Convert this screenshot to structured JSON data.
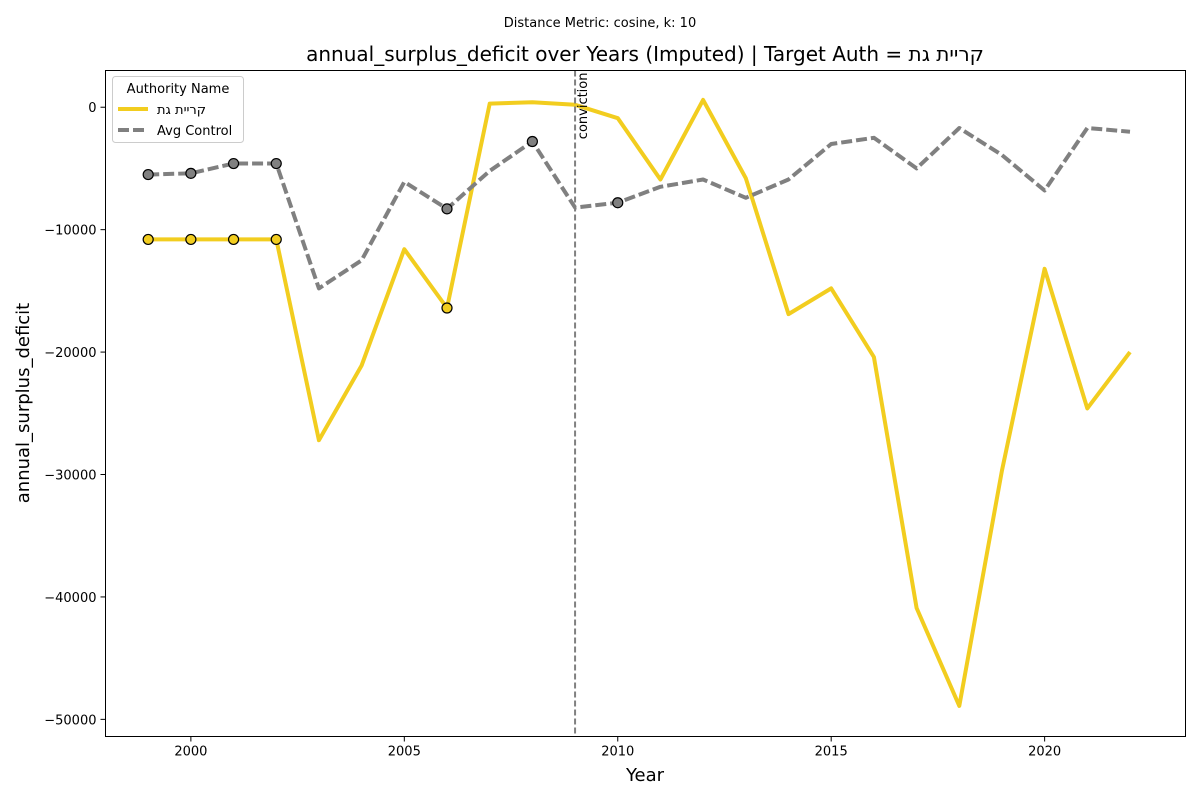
{
  "chart_data": {
    "type": "line",
    "suptitle": "Distance Metric: cosine, k: 10",
    "title": "annual_surplus_deficit over Years (Imputed) | Target Auth = קריית גת",
    "xlabel": "Year",
    "ylabel": "annual_surplus_deficit",
    "xlim": [
      1998,
      2023.3
    ],
    "ylim": [
      -51400,
      3000
    ],
    "xticks": [
      2000,
      2005,
      2010,
      2015,
      2020
    ],
    "xtick_labels": [
      "2000",
      "2005",
      "2010",
      "2015",
      "2020"
    ],
    "yticks": [
      0,
      -10000,
      -20000,
      -30000,
      -40000,
      -50000
    ],
    "ytick_labels": [
      "0",
      "−10000",
      "−20000",
      "−30000",
      "−40000",
      "−50000"
    ],
    "grid": false,
    "legend": {
      "title": "Authority Name",
      "placement": "top-left"
    },
    "vline": {
      "x": 2009,
      "label": "conviction",
      "color": "#808080"
    },
    "x": [
      1999,
      2000,
      2001,
      2002,
      2003,
      2004,
      2005,
      2006,
      2007,
      2008,
      2009,
      2010,
      2011,
      2012,
      2013,
      2014,
      2015,
      2016,
      2017,
      2018,
      2019,
      2020,
      2021,
      2022
    ],
    "series": [
      {
        "name": "קריית גת",
        "color": "#f2cd1f",
        "style": "solid",
        "values": [
          -10800,
          -10800,
          -10800,
          -10800,
          -27200,
          -21100,
          -11600,
          -16400,
          300,
          400,
          200,
          -900,
          -5900,
          600,
          -5800,
          -16900,
          -14800,
          -20400,
          -40900,
          -48900,
          -29700,
          -13200,
          -24600,
          -20000
        ],
        "imputed_x": [
          1999,
          2000,
          2001,
          2002,
          2006
        ]
      },
      {
        "name": "Avg Control",
        "color": "#808080",
        "style": "dashed",
        "values": [
          -5500,
          -5400,
          -4600,
          -4600,
          -14800,
          -12500,
          -6100,
          -8300,
          -5200,
          -2800,
          -8200,
          -7800,
          -6500,
          -5900,
          -7400,
          -5900,
          -3000,
          -2500,
          -5000,
          -1700,
          -3900,
          -6800,
          -1700,
          -2000
        ],
        "imputed_x": [
          1999,
          2000,
          2001,
          2002,
          2006,
          2008,
          2010
        ]
      }
    ]
  }
}
